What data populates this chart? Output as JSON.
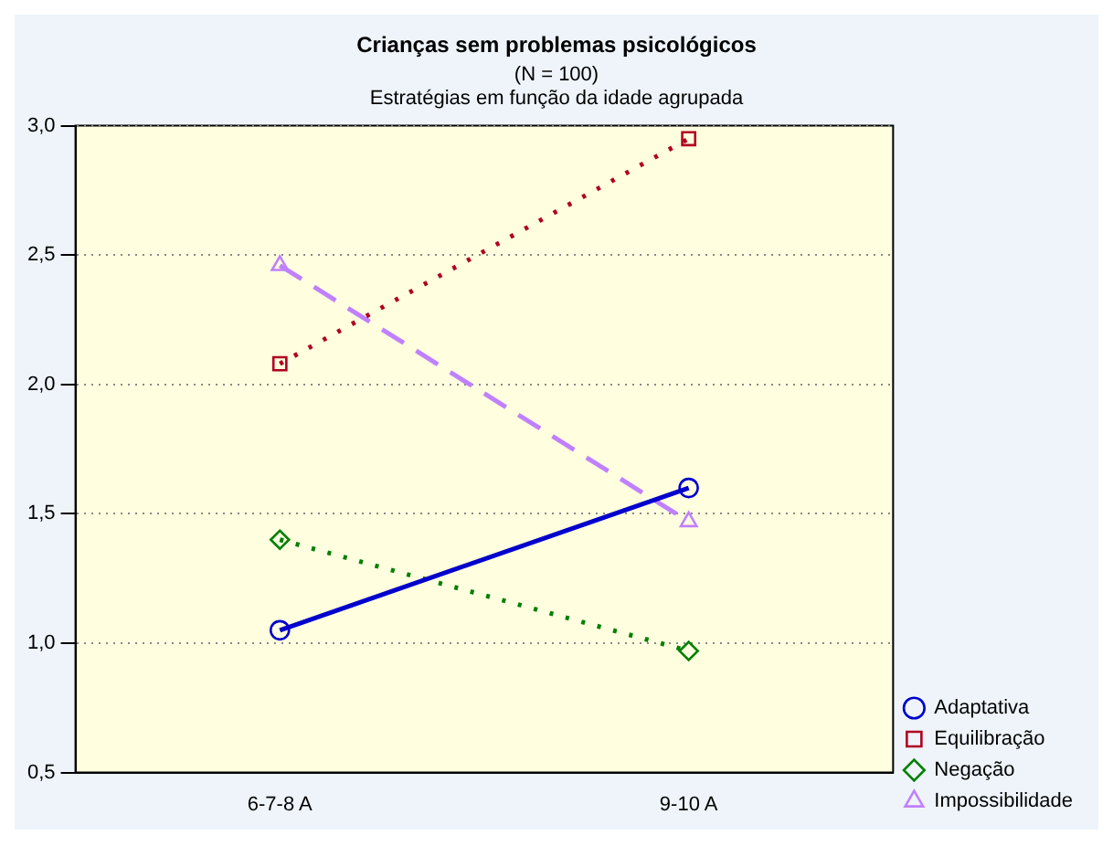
{
  "chart_data": {
    "type": "line",
    "title": "Crianças sem problemas psicológicos",
    "subtitle": "(N = 100)\nEstratégias em função da idade agrupada",
    "categories": [
      "6-7-8 A",
      "9-10 A"
    ],
    "series": [
      {
        "name": "Adaptativa",
        "color": "#0000cc",
        "values": [
          1.05,
          1.6
        ],
        "marker": "circle",
        "line_style": "solid"
      },
      {
        "name": "Equilibração",
        "color": "#b00020",
        "values": [
          2.08,
          2.95
        ],
        "marker": "square",
        "line_style": "dotted"
      },
      {
        "name": "Negação",
        "color": "#008000",
        "values": [
          1.4,
          0.97
        ],
        "marker": "diamond",
        "line_style": "dotted"
      },
      {
        "name": "Impossibilidade",
        "color": "#c080ff",
        "values": [
          2.46,
          1.47
        ],
        "marker": "triangle",
        "line_style": "dashed"
      }
    ],
    "ylim": [
      0.5,
      3.0
    ],
    "yticks": [
      {
        "value": 0.5,
        "label": "0,5"
      },
      {
        "value": 1.0,
        "label": "1,0"
      },
      {
        "value": 1.5,
        "label": "1,5"
      },
      {
        "value": 2.0,
        "label": "2,0"
      },
      {
        "value": 2.5,
        "label": "2,5"
      },
      {
        "value": 3.0,
        "label": "3,0"
      }
    ],
    "grid": "y",
    "legend": "bottom right"
  }
}
